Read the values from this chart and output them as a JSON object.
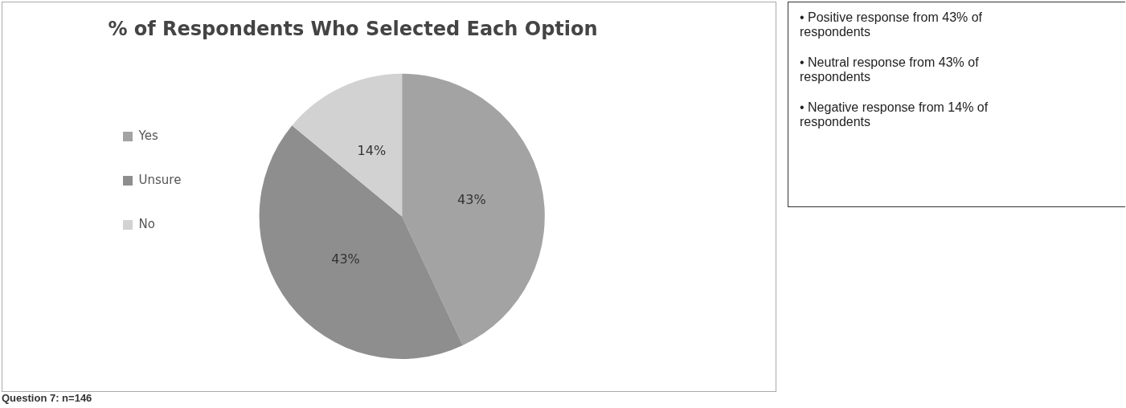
{
  "chart_data": [
    {
      "type": "pie",
      "title": "% of Respondents Who Selected Each Option",
      "categories": [
        "Yes",
        "Unsure",
        "No"
      ],
      "values": [
        43,
        43,
        14
      ],
      "colors": [
        "#a3a3a3",
        "#8e8e8e",
        "#d2d2d2"
      ],
      "value_labels": [
        "43%",
        "43%",
        "14%"
      ],
      "legend": "left",
      "annotations": [
        "Question 7:  n=146"
      ]
    },
    {
      "type": "other",
      "annotations": [
        "• Positive response from 43% of respondents",
        "• Neutral response from 43% of respondents",
        "• Negative response from 14% of respondents"
      ]
    }
  ]
}
